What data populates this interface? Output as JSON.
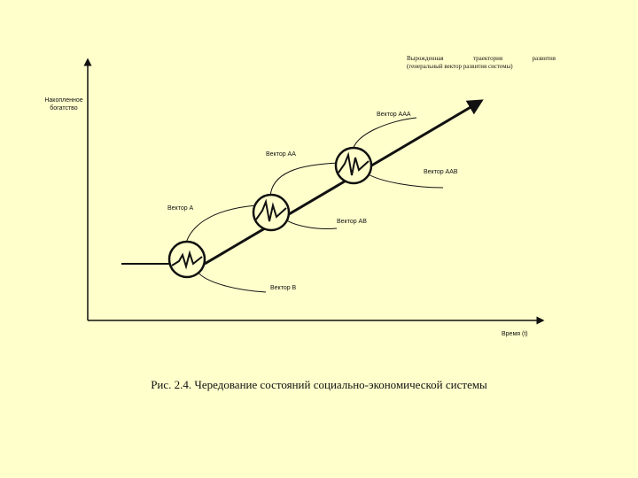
{
  "diagram": {
    "title_line1": "Вырожденная траектория развития",
    "title_line2": "(генеральный вектор развития системы)",
    "y_axis_label": "Накопленное богатство",
    "x_axis_label": "Время (t)",
    "labels": {
      "vector_aaa": "Вектор ААА",
      "vector_aa": "Вектор АА",
      "vector_aab": "Вектор ААВ",
      "vector_a": "Вектор А",
      "vector_ab": "Вектор АВ",
      "vector_b": "Вектор В"
    },
    "caption": "Рис. 2.4. Чередование состояний социально-экономической системы"
  },
  "colors": {
    "background": "#ffffcc",
    "ink": "#111111"
  }
}
